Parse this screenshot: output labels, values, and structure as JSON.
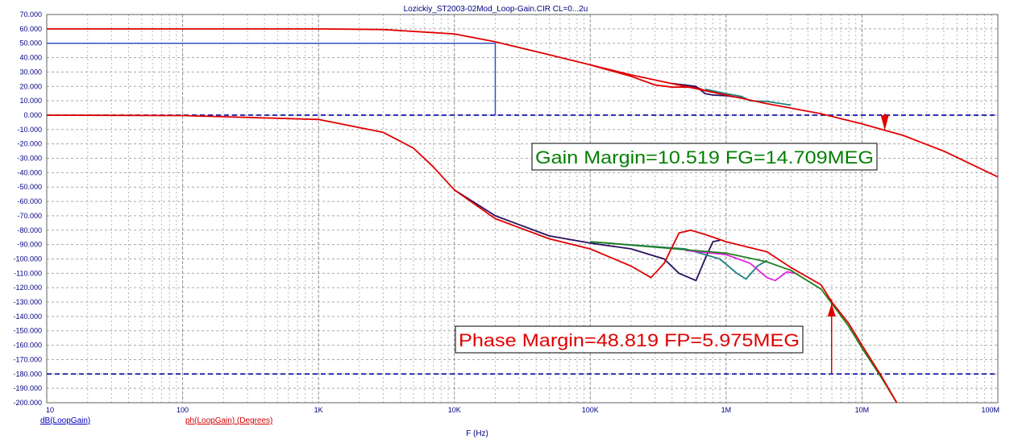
{
  "chart_data": {
    "type": "line",
    "title": "Lozickiy_ST2003-02Mod_Loop-Gain.CIR CL=0...2u",
    "xlabel": "F (Hz)",
    "xscale": "log",
    "xlim": [
      10,
      100000000
    ],
    "ylim": [
      -200,
      70
    ],
    "x_tick_labels": [
      "10",
      "100",
      "1K",
      "10K",
      "100K",
      "1M",
      "10M",
      "100M"
    ],
    "x_tick_values": [
      10,
      100,
      1000,
      10000,
      100000,
      1000000,
      10000000,
      100000000
    ],
    "y_tick_values": [
      70,
      60,
      50,
      40,
      30,
      20,
      10,
      0,
      -10,
      -20,
      -30,
      -40,
      -50,
      -60,
      -70,
      -80,
      -90,
      -100,
      -110,
      -120,
      -130,
      -140,
      -150,
      -160,
      -170,
      -180,
      -190,
      -200
    ],
    "y_tick_labels": [
      "70.000",
      "60.000",
      "50.000",
      "40.000",
      "30.000",
      "20.000",
      "10.000",
      "0.000",
      "-10.000",
      "-20.000",
      "-30.000",
      "-40.000",
      "-50.000",
      "-60.000",
      "-70.000",
      "-80.000",
      "-90.000",
      "-100.000",
      "-110.000",
      "-120.000",
      "-130.000",
      "-140.000",
      "-150.000",
      "-160.000",
      "-170.000",
      "-180.000",
      "-190.000",
      "-200.000"
    ],
    "grid": true,
    "legend": [
      {
        "label": "dB(LoopGain)",
        "color": "#0000c0"
      },
      {
        "label": "ph(LoopGain) (Degrees)",
        "color": "#d00000"
      }
    ],
    "reference_lines": [
      0,
      -180
    ],
    "gain_series": [
      {
        "color": "#e00000",
        "points": [
          [
            10,
            60
          ],
          [
            1000,
            60
          ],
          [
            3000,
            59.5
          ],
          [
            10000,
            56.5
          ],
          [
            20000,
            51
          ],
          [
            50000,
            42
          ],
          [
            100000,
            35
          ],
          [
            200000,
            28
          ],
          [
            500000,
            20
          ],
          [
            1000000,
            14
          ],
          [
            2000000,
            8
          ],
          [
            5000000,
            1
          ],
          [
            10000000,
            -6
          ],
          [
            14709000,
            -10.5
          ],
          [
            20000000,
            -14
          ],
          [
            40000000,
            -25
          ],
          [
            70000000,
            -36
          ],
          [
            100000000,
            -43
          ]
        ]
      },
      {
        "color": "#e00000",
        "points": [
          [
            100000,
            35
          ],
          [
            200000,
            27
          ],
          [
            300000,
            21
          ],
          [
            400000,
            19.5
          ],
          [
            600000,
            19.5
          ],
          [
            700000,
            17
          ],
          [
            1000000,
            14
          ]
        ]
      },
      {
        "color": "#2a1060",
        "points": [
          [
            400000,
            22
          ],
          [
            600000,
            20
          ],
          [
            700000,
            15
          ],
          [
            800000,
            14
          ],
          [
            1000000,
            13.5
          ],
          [
            1300000,
            12
          ]
        ]
      },
      {
        "color": "#208080",
        "points": [
          [
            700000,
            18
          ],
          [
            1000000,
            15
          ],
          [
            1300000,
            13
          ],
          [
            1500000,
            10
          ],
          [
            2000000,
            9.5
          ],
          [
            3000000,
            7
          ]
        ]
      }
    ],
    "phase_series": [
      {
        "color": "#e00000",
        "points": [
          [
            10,
            0
          ],
          [
            100,
            -0.3
          ],
          [
            1000,
            -3
          ],
          [
            3000,
            -12
          ],
          [
            5000,
            -23
          ],
          [
            7000,
            -36
          ],
          [
            10000,
            -52
          ],
          [
            20000,
            -72
          ],
          [
            50000,
            -86
          ],
          [
            100000,
            -93
          ],
          [
            200000,
            -105
          ],
          [
            280000,
            -113
          ],
          [
            350000,
            -103
          ],
          [
            450000,
            -82
          ],
          [
            550000,
            -80
          ],
          [
            700000,
            -83
          ],
          [
            1000000,
            -88
          ],
          [
            2000000,
            -95
          ],
          [
            3000000,
            -106
          ],
          [
            5000000,
            -118
          ],
          [
            6000000,
            -130
          ],
          [
            8000000,
            -145
          ],
          [
            10000000,
            -160
          ],
          [
            14000000,
            -182
          ],
          [
            18000000,
            -200
          ]
        ]
      },
      {
        "color": "#2a1060",
        "points": [
          [
            10000,
            -52
          ],
          [
            20000,
            -70
          ],
          [
            50000,
            -84
          ],
          [
            100000,
            -89
          ],
          [
            200000,
            -93
          ],
          [
            350000,
            -100
          ],
          [
            450000,
            -110
          ],
          [
            600000,
            -115
          ],
          [
            700000,
            -100
          ],
          [
            800000,
            -88
          ],
          [
            900000,
            -87
          ]
        ]
      },
      {
        "color": "#208080",
        "points": [
          [
            100000,
            -88
          ],
          [
            500000,
            -93
          ],
          [
            900000,
            -100
          ],
          [
            1200000,
            -110
          ],
          [
            1400000,
            -114
          ],
          [
            1700000,
            -105
          ],
          [
            2000000,
            -101
          ]
        ]
      },
      {
        "color": "#e020e0",
        "points": [
          [
            500000,
            -94
          ],
          [
            1000000,
            -97
          ],
          [
            1500000,
            -103
          ],
          [
            2000000,
            -113
          ],
          [
            2300000,
            -115
          ],
          [
            2800000,
            -109
          ],
          [
            3200000,
            -110
          ]
        ]
      },
      {
        "color": "#208020",
        "points": [
          [
            100000,
            -88
          ],
          [
            1000000,
            -96
          ],
          [
            2000000,
            -102
          ],
          [
            3000000,
            -108
          ],
          [
            5000000,
            -121
          ],
          [
            6000000,
            -131
          ],
          [
            8000000,
            -147
          ],
          [
            10000000,
            -162
          ],
          [
            14000000,
            -183
          ],
          [
            18000000,
            -200
          ]
        ]
      }
    ],
    "markers": {
      "fg_hz": 20000,
      "fg_db": 50,
      "gain_crossover_hz": 14709000,
      "phase_crossover_hz": 5975000,
      "phase_at_fp": -131
    },
    "annotations": [
      {
        "text": "Gain Margin=10.519 FG=14.709MEG",
        "color": "#008000"
      },
      {
        "text": "Phase Margin=48.819 FP=5.975MEG",
        "color": "#e00000"
      }
    ]
  }
}
